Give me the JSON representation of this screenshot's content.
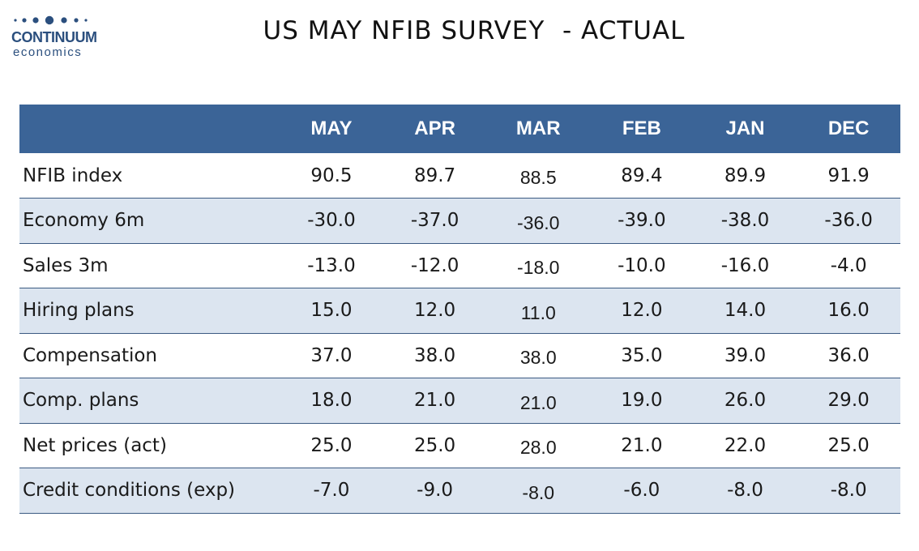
{
  "logo": {
    "name": "CONTINUUM",
    "sub": "economics"
  },
  "title": "US MAY NFIB SURVEY  - ACTUAL",
  "colors": {
    "header_bg": "#3b6497",
    "stripe_bg": "#dce5f0",
    "rule": "#3b5a82",
    "logo": "#2b4f7e"
  },
  "chart_data": {
    "type": "table",
    "columns": [
      "",
      "MAY",
      "APR",
      "MAR",
      "FEB",
      "JAN",
      "DEC"
    ],
    "rows": [
      [
        "NFIB index",
        "90.5",
        "89.7",
        "88.5",
        "89.4",
        "89.9",
        "91.9"
      ],
      [
        "Economy 6m",
        "-30.0",
        "-37.0",
        "-36.0",
        "-39.0",
        "-38.0",
        "-36.0"
      ],
      [
        "Sales 3m",
        "-13.0",
        "-12.0",
        "-18.0",
        "-10.0",
        "-16.0",
        "-4.0"
      ],
      [
        "Hiring plans",
        "15.0",
        "12.0",
        "11.0",
        "12.0",
        "14.0",
        "16.0"
      ],
      [
        "Compensation",
        "37.0",
        "38.0",
        "38.0",
        "35.0",
        "39.0",
        "36.0"
      ],
      [
        "Comp. plans",
        "18.0",
        "21.0",
        "21.0",
        "19.0",
        "26.0",
        "29.0"
      ],
      [
        "Net prices (act)",
        "25.0",
        "25.0",
        "28.0",
        "21.0",
        "22.0",
        "25.0"
      ],
      [
        "Credit conditions (exp)",
        "-7.0",
        "-9.0",
        "-8.0",
        "-6.0",
        "-8.0",
        "-8.0"
      ]
    ]
  }
}
